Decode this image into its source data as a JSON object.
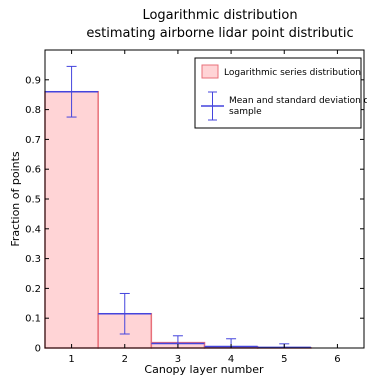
{
  "chart_data": {
    "type": "bar",
    "title": "Logarithmic distribution",
    "subtitle": "estimating airborne lidar point distributic",
    "xlabel": "Canopy layer number",
    "ylabel": "Fraction of points",
    "xlim": [
      0.5,
      6.5
    ],
    "ylim": [
      0,
      1.0
    ],
    "x_ticks": [
      "1",
      "2",
      "3",
      "4",
      "5",
      "6"
    ],
    "y_ticks": [
      "0",
      "0.1",
      "0.2",
      "0.3",
      "0.4",
      "0.5",
      "0.6",
      "0.7",
      "0.8",
      "0.9"
    ],
    "grid": false,
    "legend_position": "top-right",
    "series": [
      {
        "name": "Logarithmic series distribution",
        "kind": "bar",
        "color": "#ffd4d6",
        "edge_color": "#e8707a",
        "x": [
          1,
          2,
          3,
          4,
          5,
          6
        ],
        "values": [
          0.86,
          0.115,
          0.018,
          0.004,
          0.001,
          0.0
        ]
      },
      {
        "name": "Mean and standard deviation of sample",
        "kind": "errorbar",
        "color": "#4444dd",
        "x": [
          1,
          2,
          3,
          4,
          5
        ],
        "mean": [
          0.86,
          0.115,
          0.015,
          0.005,
          0.002
        ],
        "std": [
          0.085,
          0.068,
          0.026,
          0.026,
          0.012
        ]
      }
    ]
  }
}
